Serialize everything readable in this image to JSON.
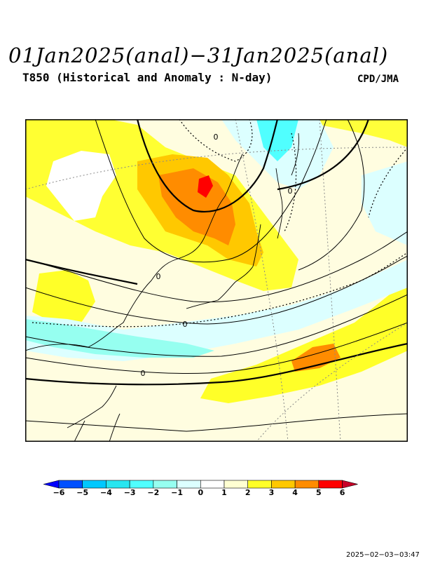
{
  "header": {
    "title": "01Jan2025(anal)−31Jan2025(anal)",
    "subtitle": "T850 (Historical and Anomaly : N-day)",
    "agency": "CPD/JMA"
  },
  "map": {
    "contour_zero_labels": [
      "0",
      "0",
      "0",
      "0",
      "0"
    ]
  },
  "colorbar": {
    "levels": [
      "−6",
      "−5",
      "−4",
      "−3",
      "−2",
      "−1",
      "0",
      "1",
      "2",
      "3",
      "4",
      "5",
      "6"
    ],
    "colors": [
      "#0000ff",
      "#0050ff",
      "#00c8ff",
      "#28e6f0",
      "#50ffff",
      "#96fff0",
      "#dcffff",
      "#ffffff",
      "#ffffd2",
      "#ffff28",
      "#ffc800",
      "#ff8c00",
      "#ff0000",
      "#c80028"
    ]
  },
  "footer": {
    "timestamp": "2025−02−03−03:47"
  }
}
